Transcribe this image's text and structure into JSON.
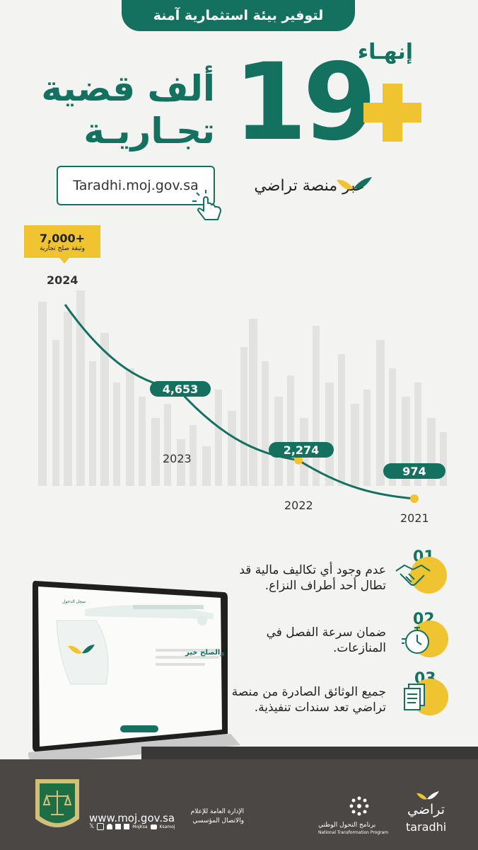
{
  "header": {
    "pill_text": "لتوفير بيئة استثمارية آمنة"
  },
  "headline": {
    "finish": "إنهـاء",
    "number": "19",
    "title_line1": "ألف قضية",
    "title_line2": "تجـاريـة"
  },
  "platform": {
    "url": "Taradhi.moj.gov.sa",
    "via_text": "عبر منصة تراضي"
  },
  "chart_data": {
    "type": "line",
    "x": [
      "2021",
      "2022",
      "2023",
      "2024"
    ],
    "series": [
      {
        "values": [
          974,
          2274,
          4653,
          7000
        ]
      }
    ],
    "value_labels": [
      "974",
      "2,274",
      "4,653",
      "7,000+"
    ],
    "callout_sub": "وثيقة صلح تجارية"
  },
  "features": [
    {
      "num": "01",
      "text": "عدم وجود أي تكاليف مالية قد تطال أحد أطراف النزاع.",
      "icon": "handshake-icon"
    },
    {
      "num": "02",
      "text": "ضمان سرعة الفصل في المنازعات.",
      "icon": "stopwatch-icon"
    },
    {
      "num": "03",
      "text": "جميع الوثائق الصادرة من منصة تراضي تعد سندات تنفيذية.",
      "icon": "documents-icon"
    }
  ],
  "laptop": {
    "nav_button": "سجل الدخول",
    "hero_text": "والصلح خير"
  },
  "footer": {
    "site_url": "www.moj.gov.sa",
    "social_handle_1": "MojKsa",
    "social_handle_2": "Ksamoj",
    "dept_text": "الإدارة العامة للإعلام والاتصال المؤسسي",
    "ntp_ar": "برنامج التحول الوطني",
    "ntp_en": "National Transformation Program",
    "taradhi_ar": "تراضي",
    "taradhi_en": "taradhi"
  },
  "colors": {
    "primary": "#14705f",
    "accent": "#f0c330",
    "footer": "#4a4745"
  }
}
